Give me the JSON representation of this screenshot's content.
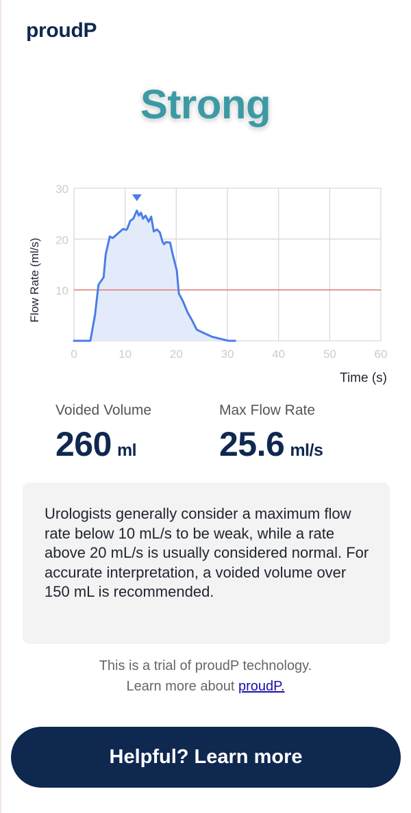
{
  "brand": "proudP",
  "verdict": "Strong",
  "chart_data": {
    "type": "area",
    "ylabel": "Flow Rate (ml/s)",
    "xlabel": "Time (s)",
    "xlim": [
      0,
      60
    ],
    "ylim": [
      0,
      30
    ],
    "xticks": [
      0,
      10,
      20,
      30,
      40,
      50,
      60
    ],
    "yticks": [
      10,
      20,
      30
    ],
    "grid": true,
    "threshold": 10,
    "threshold_color": "#e07a6a",
    "line_color": "#4a7de8",
    "fill_color": "#e3ebfb",
    "peak_marker_x": 12.3,
    "series": [
      {
        "x": [
          0,
          3.2,
          4.1,
          4.8,
          5.8,
          6.2,
          7.0,
          7.6,
          8.8,
          9.6,
          10.2,
          10.4,
          11.0,
          11.6,
          12.3,
          12.7,
          13.1,
          13.5,
          14.0,
          14.6,
          15.1,
          15.6,
          16.2,
          16.8,
          17.3,
          17.6,
          18.0,
          18.8,
          19.2,
          20.1,
          20.5,
          21.3,
          22.2,
          23.1,
          24.0,
          24.8,
          27.0,
          30.2,
          31.0,
          31.5
        ],
        "y": [
          0,
          0,
          5,
          11,
          12.5,
          17,
          20.5,
          20.2,
          21.3,
          22,
          21.8,
          22,
          23.6,
          24,
          25.6,
          24.6,
          25.2,
          24,
          24.6,
          23.4,
          24.4,
          21.5,
          21.9,
          21.3,
          19.5,
          19,
          19.4,
          19.3,
          17.4,
          13.8,
          9.3,
          7.8,
          5.6,
          4,
          2.2,
          1.8,
          0.8,
          0,
          0,
          0
        ]
      }
    ]
  },
  "metrics": {
    "volume_label": "Voided Volume",
    "volume_value": "260",
    "volume_unit": "ml",
    "flow_label": "Max Flow Rate",
    "flow_value": "25.6",
    "flow_unit": "ml/s"
  },
  "note": "Urologists generally consider a maximum flow rate below 10 mL/s to be weak, while a rate above 20 mL/s is usually considered normal. For accurate interpretation, a voided volume over 150 mL is recommended.",
  "trial": {
    "line1": "This is a trial of proudP technology.",
    "line2_prefix": "Learn more about ",
    "link_text": "proudP."
  },
  "cta_label": "Helpful? Learn more"
}
